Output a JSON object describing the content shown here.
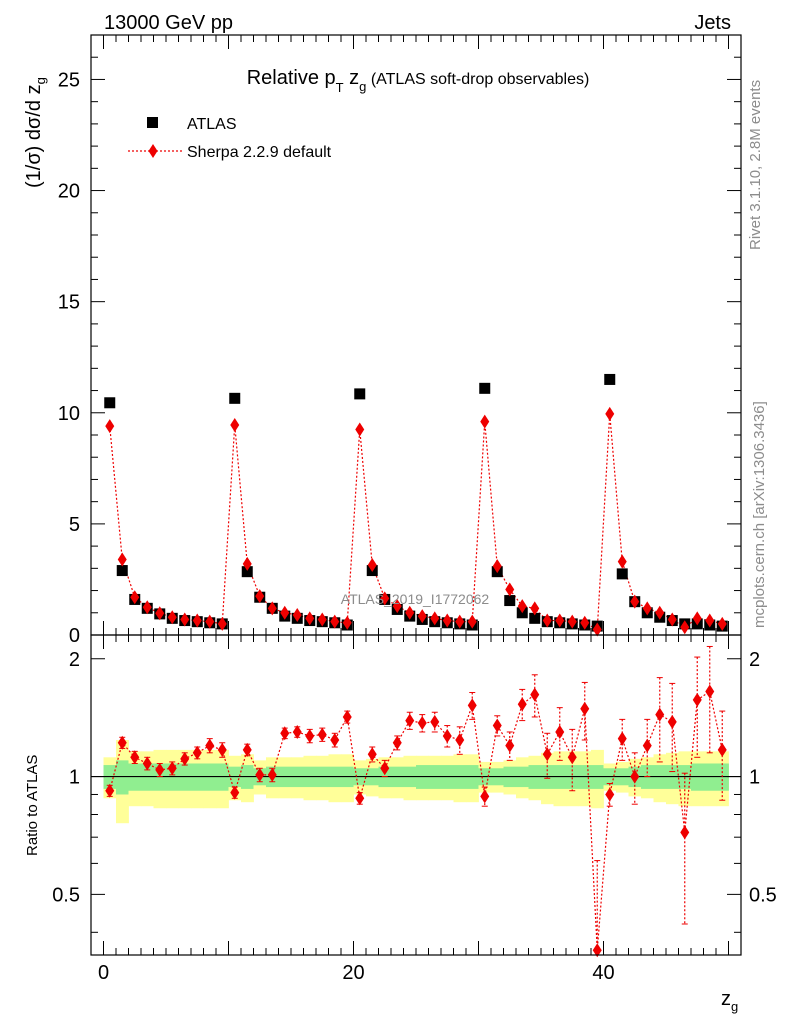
{
  "header": {
    "energy_label": "13000 GeV pp",
    "process_label": "Jets",
    "title_main": "Relative p",
    "title_sub_T": "T",
    "title_zg": " z",
    "title_sub_g": "g",
    "title_tail": " (ATLAS soft-drop observables)",
    "side_rivet": "Rivet 3.1.10,  2.8M events",
    "side_mcplots": "mcplots.cern.ch [arXiv:1306.3436]",
    "watermark": "ATLAS_2019_I1772062"
  },
  "legend": {
    "data_label": "ATLAS",
    "mc_label": "Sherpa 2.2.9 default"
  },
  "axes": {
    "ylabel_main": "(1/σ) dσ/d z",
    "ylabel_main_sub": "g",
    "ylabel_ratio": "Ratio to ATLAS",
    "xlabel": "z",
    "xlabel_sub": "g"
  },
  "colors": {
    "data": "#000000",
    "mc": "#ee0000",
    "band_inner": "#90ee90",
    "band_outer": "#ffff99"
  },
  "chart_data": {
    "type": "scatter",
    "title": "Relative pT zg (ATLAS soft-drop observables)",
    "xlabel": "zg",
    "ylabel": "(1/σ) dσ/d zg",
    "xlim": [
      -1,
      51
    ],
    "ylim": [
      0,
      27
    ],
    "ratio_ylim": [
      0.35,
      2.3
    ],
    "x_ticks": [
      0,
      20,
      40
    ],
    "y_ticks": [
      0,
      5,
      10,
      15,
      20,
      25
    ],
    "ratio_ticks": [
      0.5,
      1,
      2
    ],
    "legend_position": "top-left",
    "x": [
      0.5,
      1.5,
      2.5,
      3.5,
      4.5,
      5.5,
      6.5,
      7.5,
      8.5,
      9.5,
      10.5,
      11.5,
      12.5,
      13.5,
      14.5,
      15.5,
      16.5,
      17.5,
      18.5,
      19.5,
      20.5,
      21.5,
      22.5,
      23.5,
      24.5,
      25.5,
      26.5,
      27.5,
      28.5,
      29.5,
      30.5,
      31.5,
      32.5,
      33.5,
      34.5,
      35.5,
      36.5,
      37.5,
      38.5,
      39.5,
      40.5,
      41.5,
      42.5,
      43.5,
      44.5,
      45.5,
      46.5,
      47.5,
      48.5,
      49.5
    ],
    "series": [
      {
        "name": "ATLAS",
        "values": [
          10.45,
          2.9,
          1.6,
          1.2,
          0.95,
          0.75,
          0.65,
          0.6,
          0.55,
          0.5,
          10.65,
          2.85,
          1.7,
          1.2,
          0.85,
          0.75,
          0.65,
          0.6,
          0.55,
          0.45,
          10.85,
          2.9,
          1.6,
          1.15,
          0.85,
          0.7,
          0.6,
          0.55,
          0.5,
          0.45,
          11.1,
          2.85,
          1.55,
          1.0,
          0.75,
          0.6,
          0.55,
          0.5,
          0.45,
          0.4,
          11.5,
          2.75,
          1.5,
          1.0,
          0.8,
          0.65,
          0.5,
          0.5,
          0.45,
          0.4
        ]
      },
      {
        "name": "Sherpa 2.2.9 default",
        "values": [
          9.4,
          3.4,
          1.7,
          1.25,
          0.98,
          0.8,
          0.7,
          0.65,
          0.6,
          0.5,
          9.45,
          3.2,
          1.75,
          1.2,
          1.0,
          0.9,
          0.75,
          0.7,
          0.6,
          0.55,
          9.25,
          3.15,
          1.65,
          1.3,
          1.0,
          0.85,
          0.75,
          0.65,
          0.6,
          0.6,
          9.6,
          3.1,
          2.05,
          1.3,
          1.2,
          0.65,
          0.65,
          0.6,
          0.55,
          0.25,
          9.95,
          3.3,
          1.5,
          1.2,
          1.0,
          0.7,
          0.35,
          0.75,
          0.65,
          0.5
        ]
      }
    ],
    "ratio": {
      "values": [
        0.92,
        1.22,
        1.12,
        1.08,
        1.04,
        1.05,
        1.11,
        1.15,
        1.2,
        1.17,
        0.91,
        1.17,
        1.01,
        1.01,
        1.29,
        1.3,
        1.27,
        1.28,
        1.24,
        1.42,
        0.88,
        1.14,
        1.05,
        1.22,
        1.39,
        1.37,
        1.38,
        1.27,
        1.24,
        1.52,
        0.89,
        1.35,
        1.2,
        1.53,
        1.62,
        1.14,
        1.3,
        1.12,
        1.49,
        0.36,
        0.9,
        1.25,
        1.0,
        1.2,
        1.44,
        1.38,
        0.72,
        1.57,
        1.65,
        1.17
      ],
      "err": [
        0.03,
        0.04,
        0.04,
        0.04,
        0.04,
        0.04,
        0.04,
        0.04,
        0.05,
        0.05,
        0.03,
        0.04,
        0.04,
        0.04,
        0.04,
        0.04,
        0.05,
        0.05,
        0.05,
        0.05,
        0.03,
        0.05,
        0.05,
        0.05,
        0.07,
        0.07,
        0.08,
        0.08,
        0.1,
        0.12,
        0.05,
        0.08,
        0.1,
        0.14,
        0.2,
        0.15,
        0.2,
        0.2,
        0.25,
        0.25,
        0.06,
        0.15,
        0.15,
        0.2,
        0.35,
        0.35,
        0.3,
        0.45,
        0.5,
        0.3
      ],
      "band_inner": [
        0.07,
        0.1,
        0.08,
        0.08,
        0.08,
        0.08,
        0.08,
        0.08,
        0.08,
        0.08,
        0.06,
        0.07,
        0.05,
        0.06,
        0.06,
        0.06,
        0.06,
        0.06,
        0.06,
        0.06,
        0.05,
        0.05,
        0.06,
        0.06,
        0.06,
        0.07,
        0.07,
        0.07,
        0.07,
        0.07,
        0.05,
        0.05,
        0.06,
        0.06,
        0.07,
        0.07,
        0.07,
        0.07,
        0.07,
        0.07,
        0.05,
        0.05,
        0.06,
        0.07,
        0.07,
        0.07,
        0.07,
        0.08,
        0.08,
        0.08
      ],
      "band_outer": [
        0.12,
        0.24,
        0.16,
        0.16,
        0.17,
        0.17,
        0.17,
        0.17,
        0.17,
        0.17,
        0.13,
        0.14,
        0.1,
        0.12,
        0.12,
        0.12,
        0.13,
        0.13,
        0.14,
        0.14,
        0.1,
        0.11,
        0.12,
        0.12,
        0.13,
        0.13,
        0.13,
        0.13,
        0.14,
        0.14,
        0.09,
        0.09,
        0.1,
        0.12,
        0.13,
        0.15,
        0.16,
        0.16,
        0.16,
        0.17,
        0.08,
        0.09,
        0.11,
        0.12,
        0.14,
        0.15,
        0.16,
        0.16,
        0.16,
        0.16
      ]
    }
  }
}
